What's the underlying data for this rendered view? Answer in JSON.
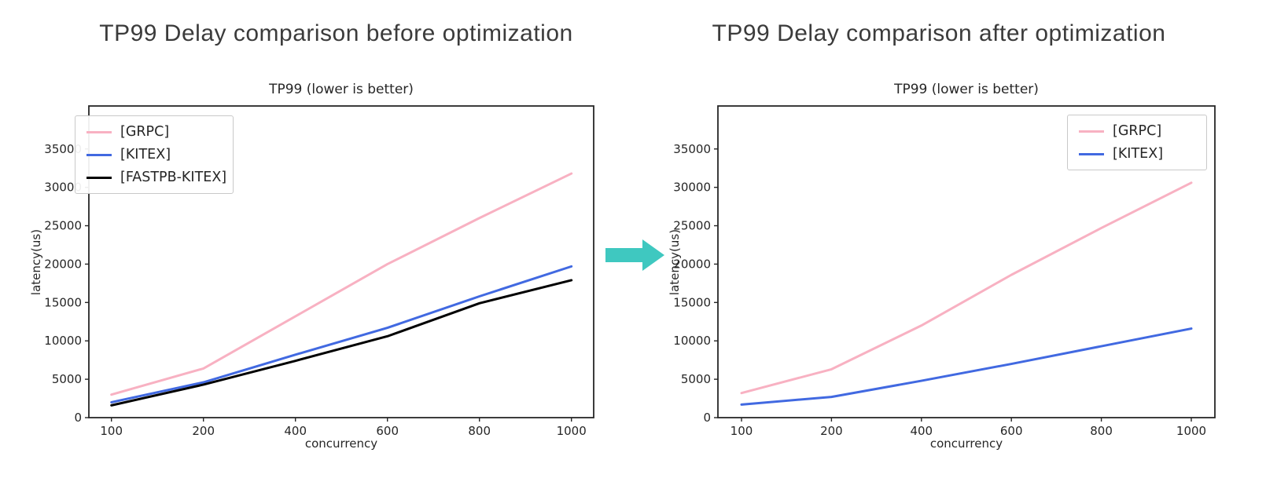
{
  "page": {
    "background": "#ffffff"
  },
  "figures": [
    {
      "heading": "TP99 Delay comparison before optimization"
    },
    {
      "heading": "TP99 Delay comparison after optimization"
    }
  ],
  "arrow": {
    "direction": "right",
    "color": "#3fc8c0"
  },
  "chart_data": [
    {
      "type": "line",
      "title": "TP99 (lower is better)",
      "xlabel": "concurrency",
      "ylabel": "latency(us)",
      "x_categories": [
        100,
        200,
        400,
        600,
        800,
        1000
      ],
      "x_tick_labels": [
        "100",
        "200",
        "400",
        "600",
        "800",
        "1000"
      ],
      "y_ticks": [
        0,
        5000,
        10000,
        15000,
        20000,
        25000,
        30000,
        35000
      ],
      "ylim": [
        0,
        40600
      ],
      "grid": false,
      "legend_position": "upper-left",
      "series": [
        {
          "name": "[GRPC]",
          "color": "#f8b1c2",
          "values": [
            3000,
            6400,
            13200,
            20000,
            26000,
            31800
          ]
        },
        {
          "name": "[KITEX]",
          "color": "#4169e1",
          "values": [
            2000,
            4600,
            8200,
            11700,
            15800,
            19700
          ]
        },
        {
          "name": "[FASTPB-KITEX]",
          "color": "#000000",
          "values": [
            1600,
            4300,
            7400,
            10600,
            14900,
            17900
          ]
        }
      ]
    },
    {
      "type": "line",
      "title": "TP99 (lower is better)",
      "xlabel": "concurrency",
      "ylabel": "latency(us)",
      "x_categories": [
        100,
        200,
        400,
        600,
        800,
        1000
      ],
      "x_tick_labels": [
        "100",
        "200",
        "400",
        "600",
        "800",
        "1000"
      ],
      "y_ticks": [
        0,
        5000,
        10000,
        15000,
        20000,
        25000,
        30000,
        35000
      ],
      "ylim": [
        0,
        40600
      ],
      "grid": false,
      "legend_position": "upper-right",
      "series": [
        {
          "name": "[GRPC]",
          "color": "#f8b1c2",
          "values": [
            3200,
            6300,
            12000,
            18600,
            24700,
            30600
          ]
        },
        {
          "name": "[KITEX]",
          "color": "#4169e1",
          "values": [
            1700,
            2700,
            4800,
            7000,
            9300,
            11600
          ]
        }
      ]
    }
  ]
}
